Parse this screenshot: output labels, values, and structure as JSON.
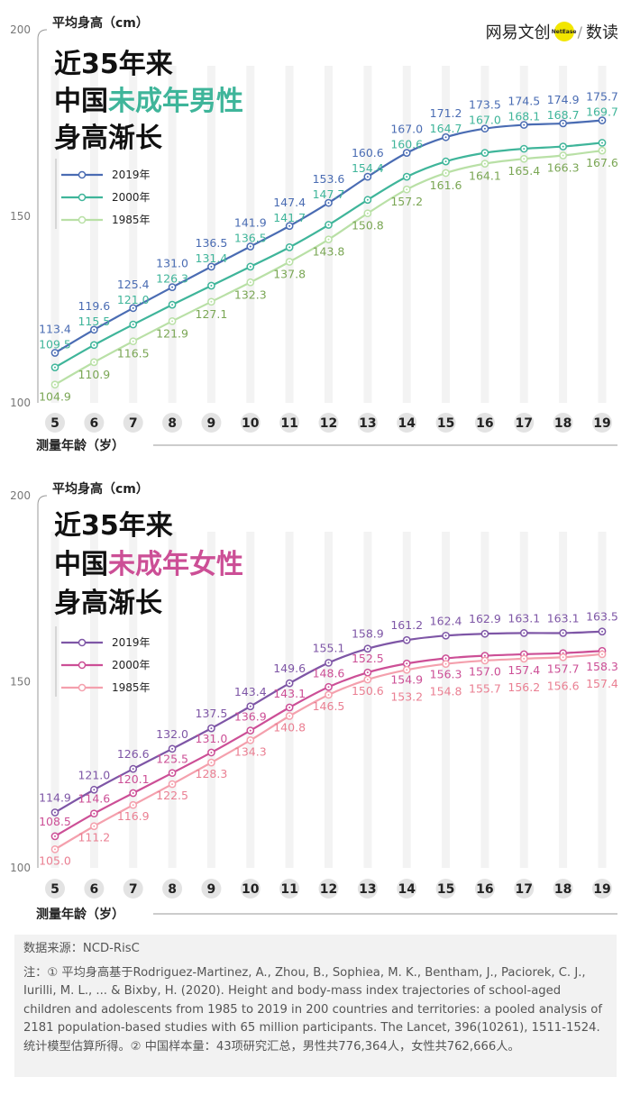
{
  "brand": {
    "name": "网易文创",
    "badge": "NetEase",
    "sub": "数读",
    "separator": "/"
  },
  "colors": {
    "male_2019": "#4a6cb3",
    "male_2000": "#3fb59a",
    "male_1985": "#b9e0a6",
    "male_label_1985": "#7aa654",
    "female_2019": "#7e56a6",
    "female_2000": "#cc4f96",
    "female_1985": "#f4a0ad",
    "female_label_1985": "#ea7f92"
  },
  "chart_data": [
    {
      "type": "line",
      "title": {
        "line1": "近35年来",
        "line2_prefix": "中国",
        "line2_highlight": "未成年男性",
        "line3": "身高渐长"
      },
      "highlight_color": "#3fb59a",
      "ylabel": "平均身高（cm）",
      "xlabel": "测量年龄（岁）",
      "ylim": [
        100,
        200
      ],
      "yticks": [
        "100",
        "150",
        "200"
      ],
      "legend_position": "top-left",
      "categories": [
        "5",
        "6",
        "7",
        "8",
        "9",
        "10",
        "11",
        "12",
        "13",
        "14",
        "15",
        "16",
        "17",
        "18",
        "19"
      ],
      "series": [
        {
          "name": "2019年",
          "color": "#4a6cb3",
          "label_color": "#4a6cb3",
          "values": [
            113.4,
            119.6,
            125.4,
            131.0,
            136.5,
            141.9,
            147.4,
            153.6,
            160.6,
            167.0,
            171.2,
            173.5,
            174.5,
            174.9,
            175.7
          ],
          "labels": [
            "113.4",
            "119.6",
            "125.4",
            "131.0",
            "136.5",
            "141.9",
            "147.4",
            "153.6",
            "160.6",
            "167.0",
            "171.2",
            "173.5",
            "174.5",
            "174.9",
            "175.7"
          ]
        },
        {
          "name": "2000年",
          "color": "#3fb59a",
          "label_color": "#3fb59a",
          "values": [
            109.5,
            115.5,
            121.0,
            126.3,
            131.4,
            136.5,
            141.7,
            147.7,
            154.4,
            160.6,
            164.7,
            167.0,
            168.1,
            168.7,
            169.7
          ],
          "labels": [
            "109.5",
            "115.5",
            "121.0",
            "126.3",
            "131.4",
            "136.5",
            "141.7",
            "147.7",
            "154.4",
            "160.6",
            "164.7",
            "167.0",
            "168.1",
            "168.7",
            "169.7"
          ]
        },
        {
          "name": "1985年",
          "color": "#b9e0a6",
          "label_color": "#7aa654",
          "values": [
            104.9,
            110.9,
            116.5,
            121.9,
            127.1,
            132.3,
            137.8,
            143.8,
            150.8,
            157.2,
            161.6,
            164.1,
            165.4,
            166.3,
            167.6
          ],
          "labels": [
            "104.9",
            "110.9",
            "116.5",
            "121.9",
            "127.1",
            "132.3",
            "137.8",
            "143.8",
            "150.8",
            "157.2",
            "161.6",
            "164.1",
            "165.4",
            "166.3",
            "167.6"
          ]
        }
      ]
    },
    {
      "type": "line",
      "title": {
        "line1": "近35年来",
        "line2_prefix": "中国",
        "line2_highlight": "未成年女性",
        "line3": "身高渐长"
      },
      "highlight_color": "#cc4f96",
      "ylabel": "平均身高（cm）",
      "xlabel": "测量年龄（岁）",
      "ylim": [
        100,
        200
      ],
      "yticks": [
        "100",
        "150",
        "200"
      ],
      "legend_position": "top-left",
      "categories": [
        "5",
        "6",
        "7",
        "8",
        "9",
        "10",
        "11",
        "12",
        "13",
        "14",
        "15",
        "16",
        "17",
        "18",
        "19"
      ],
      "series": [
        {
          "name": "2019年",
          "color": "#7e56a6",
          "label_color": "#7e56a6",
          "values": [
            114.9,
            121.0,
            126.6,
            132.0,
            137.5,
            143.4,
            149.6,
            155.1,
            158.9,
            161.2,
            162.4,
            162.9,
            163.1,
            163.1,
            163.5
          ],
          "labels": [
            "114.9",
            "121.0",
            "126.6",
            "132.0",
            "137.5",
            "143.4",
            "149.6",
            "155.1",
            "158.9",
            "161.2",
            "162.4",
            "162.9",
            "163.1",
            "163.1",
            "163.5"
          ]
        },
        {
          "name": "2000年",
          "color": "#cc4f96",
          "label_color": "#cc4f96",
          "values": [
            108.5,
            114.6,
            120.1,
            125.5,
            131.0,
            136.9,
            143.1,
            148.6,
            152.5,
            154.9,
            156.3,
            157.0,
            157.4,
            157.7,
            158.3
          ],
          "labels": [
            "108.5",
            "114.6",
            "120.1",
            "125.5",
            "131.0",
            "136.9",
            "143.1",
            "148.6",
            "152.5",
            "154.9",
            "156.3",
            "157.0",
            "157.4",
            "157.7",
            "158.3"
          ]
        },
        {
          "name": "1985年",
          "color": "#f4a0ad",
          "label_color": "#ea7f92",
          "values": [
            105.0,
            111.2,
            116.9,
            122.5,
            128.3,
            134.3,
            140.8,
            146.5,
            150.6,
            153.2,
            154.8,
            155.7,
            156.2,
            156.6,
            157.4
          ],
          "labels": [
            "105.0",
            "111.2",
            "116.9",
            "122.5",
            "128.3",
            "134.3",
            "140.8",
            "146.5",
            "150.6",
            "153.2",
            "154.8",
            "155.7",
            "156.2",
            "156.6",
            "157.4"
          ]
        }
      ]
    }
  ],
  "footnote": {
    "source": "数据来源：NCD-RisC",
    "note": "注：① 平均身高基于Rodriguez-Martinez, A., Zhou, B., Sophiea, M. K., Bentham, J., Paciorek, C. J., Iurilli, M. L., ... & Bixby, H. (2020). Height and body-mass index trajectories of school-aged children and adolescents from 1985 to 2019 in 200 countries and territories: a pooled analysis of 2181 population-based studies with 65 million participants. The Lancet, 396(10261), 1511-1524.统计模型估算所得。② 中国样本量：43项研究汇总，男性共776,364人，女性共762,666人。"
  }
}
